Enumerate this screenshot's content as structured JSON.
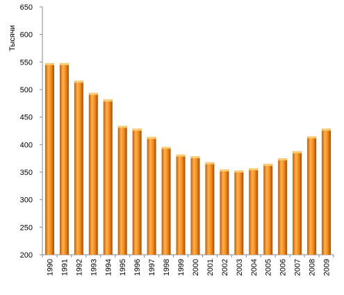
{
  "chart_data": {
    "type": "bar",
    "title": "",
    "xlabel": "",
    "ylabel": "Тысячи",
    "ylim": [
      200,
      650
    ],
    "yticks": [
      200,
      250,
      300,
      350,
      400,
      450,
      500,
      550,
      600,
      650
    ],
    "grid": false,
    "legend": "none",
    "categories": [
      "1990",
      "1991",
      "1992",
      "1993",
      "1994",
      "1995",
      "1996",
      "1997",
      "1998",
      "1999",
      "2000",
      "2001",
      "2002",
      "2003",
      "2004",
      "2005",
      "2006",
      "2007",
      "2008",
      "2009"
    ],
    "values": [
      548,
      548,
      516,
      494,
      482,
      434,
      429,
      414,
      396,
      382,
      379,
      368,
      355,
      353,
      357,
      365,
      375,
      388,
      415,
      429
    ],
    "colors": {
      "bar_light": "#ffb24a",
      "bar_mid": "#f48c1c",
      "bar_dark": "#c25a08",
      "bar_cap": "#ffd27a",
      "axis": "#888888"
    }
  }
}
